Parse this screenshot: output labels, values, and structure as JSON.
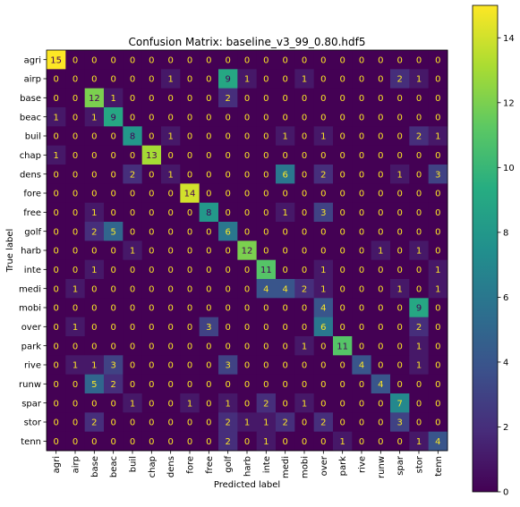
{
  "chart_data": {
    "type": "heatmap",
    "title": "Confusion Matrix: baseline_v3_99_0.80.hdf5",
    "xlabel": "Predicted label",
    "ylabel": "True label",
    "labels": [
      "agri",
      "airp",
      "base",
      "beac",
      "buil",
      "chap",
      "dens",
      "fore",
      "free",
      "golf",
      "harb",
      "inte",
      "medi",
      "mobi",
      "over",
      "park",
      "rive",
      "runw",
      "spar",
      "stor",
      "tenn"
    ],
    "matrix": [
      [
        15,
        0,
        0,
        0,
        0,
        0,
        0,
        0,
        0,
        0,
        0,
        0,
        0,
        0,
        0,
        0,
        0,
        0,
        0,
        0,
        0
      ],
      [
        0,
        0,
        0,
        0,
        0,
        0,
        1,
        0,
        0,
        9,
        1,
        0,
        0,
        1,
        0,
        0,
        0,
        0,
        2,
        1,
        0
      ],
      [
        0,
        0,
        12,
        1,
        0,
        0,
        0,
        0,
        0,
        2,
        0,
        0,
        0,
        0,
        0,
        0,
        0,
        0,
        0,
        0,
        0
      ],
      [
        1,
        0,
        1,
        9,
        0,
        0,
        0,
        0,
        0,
        0,
        0,
        0,
        0,
        0,
        0,
        0,
        0,
        0,
        0,
        0,
        0
      ],
      [
        0,
        0,
        0,
        0,
        8,
        0,
        1,
        0,
        0,
        0,
        0,
        0,
        1,
        0,
        1,
        0,
        0,
        0,
        0,
        2,
        1
      ],
      [
        1,
        0,
        0,
        0,
        0,
        13,
        0,
        0,
        0,
        0,
        0,
        0,
        0,
        0,
        0,
        0,
        0,
        0,
        0,
        0,
        0
      ],
      [
        0,
        0,
        0,
        0,
        2,
        0,
        1,
        0,
        0,
        0,
        0,
        0,
        6,
        0,
        2,
        0,
        0,
        0,
        1,
        0,
        3
      ],
      [
        0,
        0,
        0,
        0,
        0,
        0,
        0,
        14,
        0,
        0,
        0,
        0,
        0,
        0,
        0,
        0,
        0,
        0,
        0,
        0,
        0
      ],
      [
        0,
        0,
        1,
        0,
        0,
        0,
        0,
        0,
        8,
        0,
        0,
        0,
        1,
        0,
        3,
        0,
        0,
        0,
        0,
        0,
        0
      ],
      [
        0,
        0,
        2,
        5,
        0,
        0,
        0,
        0,
        0,
        6,
        0,
        0,
        0,
        0,
        0,
        0,
        0,
        0,
        0,
        0,
        0
      ],
      [
        0,
        0,
        0,
        0,
        1,
        0,
        0,
        0,
        0,
        0,
        12,
        0,
        0,
        0,
        0,
        0,
        0,
        1,
        0,
        1,
        0
      ],
      [
        0,
        0,
        1,
        0,
        0,
        0,
        0,
        0,
        0,
        0,
        0,
        11,
        0,
        0,
        1,
        0,
        0,
        0,
        0,
        0,
        1
      ],
      [
        0,
        1,
        0,
        0,
        0,
        0,
        0,
        0,
        0,
        0,
        0,
        4,
        4,
        2,
        1,
        0,
        0,
        0,
        1,
        0,
        1
      ],
      [
        0,
        0,
        0,
        0,
        0,
        0,
        0,
        0,
        0,
        0,
        0,
        0,
        0,
        0,
        4,
        0,
        0,
        0,
        0,
        9,
        0
      ],
      [
        0,
        1,
        0,
        0,
        0,
        0,
        0,
        0,
        3,
        0,
        0,
        0,
        0,
        0,
        6,
        0,
        0,
        0,
        0,
        2,
        0
      ],
      [
        0,
        0,
        0,
        0,
        0,
        0,
        0,
        0,
        0,
        0,
        0,
        0,
        0,
        1,
        0,
        11,
        0,
        0,
        0,
        1,
        0
      ],
      [
        0,
        1,
        1,
        3,
        0,
        0,
        0,
        0,
        0,
        3,
        0,
        0,
        0,
        0,
        0,
        0,
        4,
        0,
        0,
        1,
        0
      ],
      [
        0,
        0,
        5,
        2,
        0,
        0,
        0,
        0,
        0,
        0,
        0,
        0,
        0,
        0,
        0,
        0,
        0,
        4,
        0,
        0,
        0
      ],
      [
        0,
        0,
        0,
        0,
        1,
        0,
        0,
        1,
        0,
        1,
        0,
        2,
        0,
        1,
        0,
        0,
        0,
        0,
        7,
        0,
        0
      ],
      [
        0,
        0,
        2,
        0,
        0,
        0,
        0,
        0,
        0,
        2,
        1,
        1,
        2,
        0,
        2,
        0,
        0,
        0,
        3,
        0,
        0
      ],
      [
        0,
        0,
        0,
        0,
        0,
        0,
        0,
        0,
        0,
        2,
        0,
        1,
        0,
        0,
        0,
        1,
        0,
        0,
        0,
        1,
        4
      ]
    ],
    "colormap": "viridis",
    "colorbar": {
      "min": 0,
      "max": 15,
      "ticks": [
        0,
        2,
        4,
        6,
        8,
        10,
        12,
        14
      ]
    }
  }
}
